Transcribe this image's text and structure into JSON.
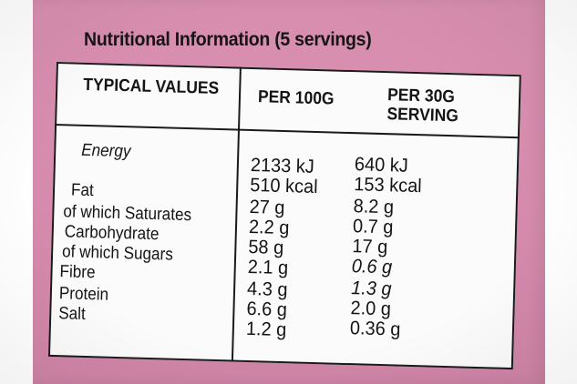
{
  "panel": {
    "heading": "Nutritional Information (5 servings)",
    "columns": {
      "typical": "TYPICAL VALUES",
      "per100": "PER 100G",
      "per30_line1": "PER 30G",
      "per30_line2": "SERVING"
    },
    "rows": [
      {
        "label": "Energy",
        "per100": "2133 kJ",
        "per30": "640 kJ"
      },
      {
        "label": "",
        "per100": "510 kcal",
        "per30": "153 kcal"
      },
      {
        "label": "Fat",
        "per100": "27 g",
        "per30": "8.2 g"
      },
      {
        "label": "of which Saturates",
        "per100": "2.2 g",
        "per30": "0.7 g"
      },
      {
        "label": "Carbohydrate",
        "per100": "58 g",
        "per30": "17 g"
      },
      {
        "label": "of which Sugars",
        "per100": "2.1 g",
        "per30": "0.6 g"
      },
      {
        "label": "Fibre",
        "per100": "4.3 g",
        "per30": "1.3 g"
      },
      {
        "label": "Protein",
        "per100": "6.6 g",
        "per30": "2.0 g"
      },
      {
        "label": "Salt",
        "per100": "1.2 g",
        "per30": "0.36 g"
      }
    ]
  },
  "colors": {
    "packaging": "#d98fb0",
    "panel": "#fbfbfb",
    "ink": "#141414"
  }
}
